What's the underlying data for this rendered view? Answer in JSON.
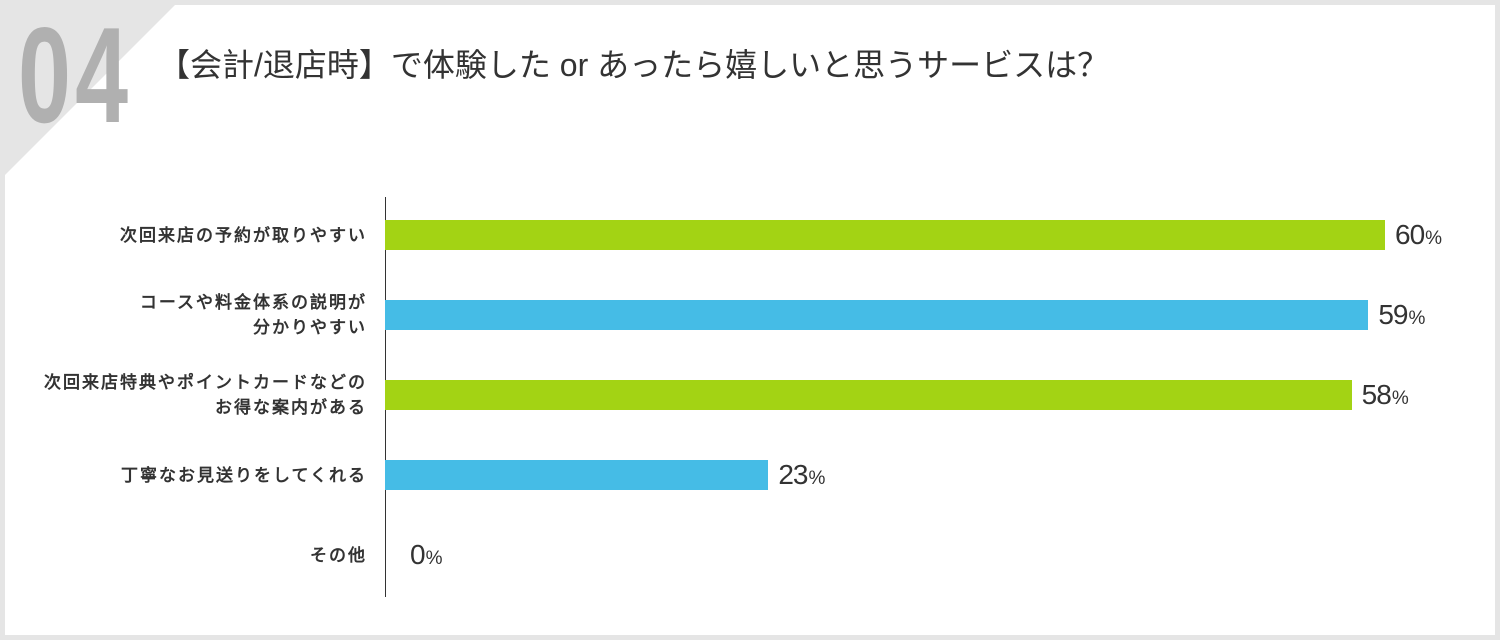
{
  "header": {
    "number": "04"
  },
  "chart_data": {
    "type": "bar",
    "orientation": "horizontal",
    "title": "【会計/退店時】で体験した or あったら嬉しいと思うサービスは？",
    "categories": [
      "次回来店の予約が取りやすい",
      "コースや料金体系の説明が\n分かりやすい",
      "次回来店特典やポイントカードなどの\nお得な案内がある",
      "丁寧なお見送りをしてくれる",
      "その他"
    ],
    "values": [
      60,
      59,
      58,
      23,
      0
    ],
    "unit": "%",
    "xlim": [
      0,
      60
    ],
    "bar_colors": [
      "#a3d314",
      "#45bce6"
    ],
    "grid": false,
    "legend": "none"
  }
}
